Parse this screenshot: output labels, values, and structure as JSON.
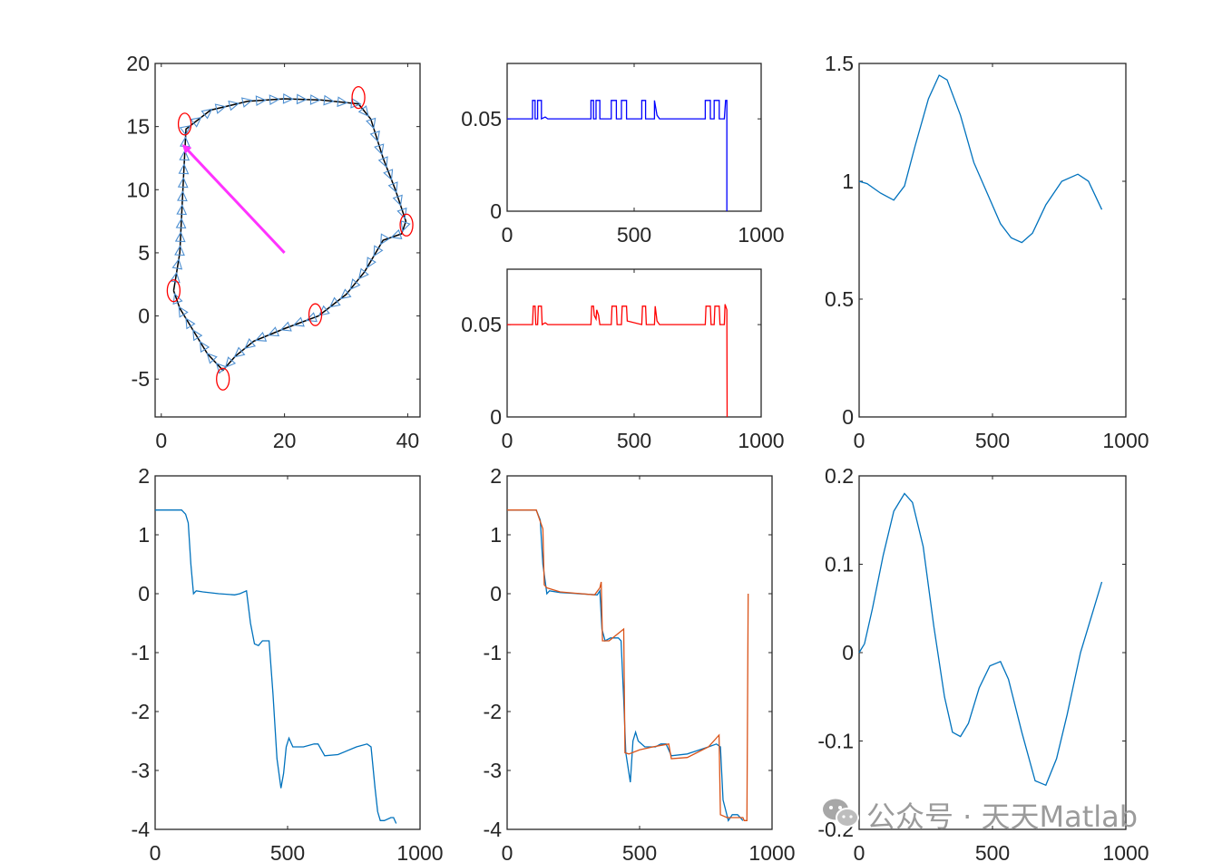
{
  "watermark": {
    "text": "公众号 · 天天Matlab"
  },
  "colors": {
    "blue": "#0072BD",
    "orange": "#D95319",
    "pureBlue": "#0000FF",
    "red": "#FF0000",
    "magenta": "#FF33FF",
    "axis": "#262626"
  },
  "chart_data": [
    {
      "id": "p1",
      "type": "line",
      "xlim": [
        -1,
        42
      ],
      "ylim": [
        -8,
        20
      ],
      "xticks": [
        0,
        20,
        40
      ],
      "yticks": [
        -5,
        0,
        5,
        10,
        15,
        20
      ],
      "path": [
        [
          2,
          2
        ],
        [
          3,
          5
        ],
        [
          3.5,
          10
        ],
        [
          4,
          14.8
        ],
        [
          8,
          16.3
        ],
        [
          14,
          17
        ],
        [
          20,
          17.2
        ],
        [
          26,
          17.1
        ],
        [
          32,
          16.8
        ],
        [
          34,
          15.6
        ],
        [
          36,
          12.5
        ],
        [
          38,
          10
        ],
        [
          39.7,
          7.5
        ],
        [
          39,
          6.5
        ],
        [
          36,
          6
        ],
        [
          33,
          3.5
        ],
        [
          30,
          1.7
        ],
        [
          25.5,
          0
        ],
        [
          20,
          -1
        ],
        [
          15,
          -2
        ],
        [
          12,
          -3.2
        ],
        [
          10,
          -4.3
        ],
        [
          7.5,
          -3
        ],
        [
          5,
          -1
        ],
        [
          3,
          0.6
        ],
        [
          2,
          2
        ]
      ],
      "circles": [
        [
          2,
          2
        ],
        [
          3.8,
          15.2
        ],
        [
          32,
          17.3
        ],
        [
          39.8,
          7.2
        ],
        [
          25,
          0.1
        ],
        [
          10,
          -5
        ]
      ],
      "arrow": {
        "from": [
          20,
          5
        ],
        "to": [
          3.6,
          13.5
        ]
      }
    },
    {
      "id": "p2",
      "type": "line",
      "color": "#0000FF",
      "xlim": [
        0,
        1000
      ],
      "ylim": [
        0,
        0.08
      ],
      "xticks": [
        0,
        500,
        1000
      ],
      "yticks": [
        0,
        0.05
      ],
      "points": [
        [
          0,
          0.05
        ],
        [
          100,
          0.05
        ],
        [
          100,
          0.06
        ],
        [
          110,
          0.06
        ],
        [
          110,
          0.05
        ],
        [
          120,
          0.05
        ],
        [
          120,
          0.06
        ],
        [
          135,
          0.06
        ],
        [
          135,
          0.05
        ],
        [
          150,
          0.051
        ],
        [
          160,
          0.05
        ],
        [
          330,
          0.05
        ],
        [
          330,
          0.06
        ],
        [
          340,
          0.06
        ],
        [
          340,
          0.05
        ],
        [
          350,
          0.05
        ],
        [
          350,
          0.06
        ],
        [
          365,
          0.06
        ],
        [
          365,
          0.05
        ],
        [
          410,
          0.05
        ],
        [
          410,
          0.06
        ],
        [
          430,
          0.06
        ],
        [
          430,
          0.05
        ],
        [
          450,
          0.05
        ],
        [
          450,
          0.06
        ],
        [
          470,
          0.06
        ],
        [
          470,
          0.05
        ],
        [
          530,
          0.05
        ],
        [
          530,
          0.06
        ],
        [
          545,
          0.06
        ],
        [
          545,
          0.05
        ],
        [
          580,
          0.05
        ],
        [
          580,
          0.06
        ],
        [
          590,
          0.052
        ],
        [
          600,
          0.05
        ],
        [
          780,
          0.05
        ],
        [
          780,
          0.06
        ],
        [
          800,
          0.06
        ],
        [
          800,
          0.05
        ],
        [
          815,
          0.05
        ],
        [
          815,
          0.06
        ],
        [
          835,
          0.06
        ],
        [
          835,
          0.05
        ],
        [
          855,
          0.05
        ],
        [
          860,
          0.06
        ],
        [
          865,
          0.06
        ],
        [
          865,
          0.0
        ]
      ]
    },
    {
      "id": "p3",
      "type": "line",
      "color": "#FF0000",
      "xlim": [
        0,
        1000
      ],
      "ylim": [
        0,
        0.08
      ],
      "xticks": [
        0,
        500,
        1000
      ],
      "yticks": [
        0,
        0.05
      ],
      "points": [
        [
          0,
          0.05
        ],
        [
          100,
          0.05
        ],
        [
          103,
          0.06
        ],
        [
          110,
          0.06
        ],
        [
          113,
          0.05
        ],
        [
          120,
          0.05
        ],
        [
          123,
          0.06
        ],
        [
          135,
          0.06
        ],
        [
          138,
          0.05
        ],
        [
          150,
          0.051
        ],
        [
          160,
          0.05
        ],
        [
          330,
          0.05
        ],
        [
          333,
          0.06
        ],
        [
          340,
          0.06
        ],
        [
          343,
          0.055
        ],
        [
          350,
          0.053
        ],
        [
          353,
          0.058
        ],
        [
          360,
          0.055
        ],
        [
          365,
          0.05
        ],
        [
          410,
          0.05
        ],
        [
          413,
          0.06
        ],
        [
          430,
          0.06
        ],
        [
          433,
          0.05
        ],
        [
          450,
          0.05
        ],
        [
          453,
          0.06
        ],
        [
          470,
          0.06
        ],
        [
          473,
          0.052
        ],
        [
          530,
          0.05
        ],
        [
          533,
          0.06
        ],
        [
          545,
          0.06
        ],
        [
          548,
          0.05
        ],
        [
          580,
          0.05
        ],
        [
          583,
          0.06
        ],
        [
          590,
          0.052
        ],
        [
          600,
          0.05
        ],
        [
          780,
          0.05
        ],
        [
          783,
          0.06
        ],
        [
          800,
          0.06
        ],
        [
          803,
          0.05
        ],
        [
          815,
          0.05
        ],
        [
          818,
          0.06
        ],
        [
          835,
          0.06
        ],
        [
          838,
          0.05
        ],
        [
          855,
          0.05
        ],
        [
          858,
          0.061
        ],
        [
          865,
          0.058
        ],
        [
          866,
          0.0
        ]
      ]
    },
    {
      "id": "p4",
      "type": "line",
      "color": "#0072BD",
      "xlim": [
        0,
        1000
      ],
      "ylim": [
        0,
        1.5
      ],
      "xticks": [
        0,
        500,
        1000
      ],
      "yticks": [
        0,
        0.5,
        1,
        1.5
      ],
      "points": [
        [
          0,
          1.0
        ],
        [
          30,
          0.99
        ],
        [
          80,
          0.95
        ],
        [
          130,
          0.92
        ],
        [
          170,
          0.98
        ],
        [
          210,
          1.15
        ],
        [
          260,
          1.35
        ],
        [
          300,
          1.45
        ],
        [
          330,
          1.43
        ],
        [
          380,
          1.28
        ],
        [
          430,
          1.08
        ],
        [
          480,
          0.95
        ],
        [
          530,
          0.82
        ],
        [
          570,
          0.76
        ],
        [
          610,
          0.74
        ],
        [
          650,
          0.78
        ],
        [
          700,
          0.9
        ],
        [
          760,
          1.0
        ],
        [
          820,
          1.03
        ],
        [
          860,
          1.0
        ],
        [
          910,
          0.88
        ]
      ]
    },
    {
      "id": "p5",
      "type": "line",
      "color": "#0072BD",
      "xlim": [
        0,
        1000
      ],
      "ylim": [
        -4,
        2
      ],
      "xticks": [
        0,
        500,
        1000
      ],
      "yticks": [
        -4,
        -3,
        -2,
        -1,
        0,
        1,
        2
      ],
      "points": [
        [
          0,
          1.42
        ],
        [
          100,
          1.42
        ],
        [
          115,
          1.35
        ],
        [
          125,
          1.2
        ],
        [
          135,
          0.5
        ],
        [
          145,
          0.0
        ],
        [
          155,
          0.05
        ],
        [
          180,
          0.03
        ],
        [
          240,
          0.0
        ],
        [
          300,
          -0.02
        ],
        [
          320,
          0.0
        ],
        [
          345,
          0.05
        ],
        [
          360,
          -0.5
        ],
        [
          375,
          -0.85
        ],
        [
          390,
          -0.88
        ],
        [
          405,
          -0.8
        ],
        [
          430,
          -0.8
        ],
        [
          445,
          -1.7
        ],
        [
          460,
          -2.8
        ],
        [
          475,
          -3.3
        ],
        [
          485,
          -3.05
        ],
        [
          495,
          -2.6
        ],
        [
          505,
          -2.45
        ],
        [
          520,
          -2.6
        ],
        [
          560,
          -2.6
        ],
        [
          600,
          -2.55
        ],
        [
          615,
          -2.55
        ],
        [
          640,
          -2.75
        ],
        [
          690,
          -2.73
        ],
        [
          760,
          -2.6
        ],
        [
          800,
          -2.55
        ],
        [
          815,
          -2.6
        ],
        [
          830,
          -3.3
        ],
        [
          840,
          -3.7
        ],
        [
          850,
          -3.85
        ],
        [
          865,
          -3.85
        ],
        [
          890,
          -3.8
        ],
        [
          900,
          -3.8
        ],
        [
          910,
          -3.9
        ]
      ]
    },
    {
      "id": "p6",
      "type": "line",
      "xlim": [
        0,
        1000
      ],
      "ylim": [
        -4,
        2
      ],
      "xticks": [
        0,
        500,
        1000
      ],
      "yticks": [
        -4,
        -3,
        -2,
        -1,
        0,
        1,
        2
      ],
      "series": [
        {
          "color": "#0072BD",
          "points": [
            [
              0,
              1.42
            ],
            [
              110,
              1.42
            ],
            [
              125,
              1.25
            ],
            [
              135,
              0.5
            ],
            [
              150,
              0.0
            ],
            [
              160,
              0.05
            ],
            [
              200,
              0.02
            ],
            [
              340,
              -0.02
            ],
            [
              350,
              0.05
            ],
            [
              358,
              -0.6
            ],
            [
              370,
              -0.8
            ],
            [
              390,
              -0.75
            ],
            [
              420,
              -0.75
            ],
            [
              430,
              -0.8
            ],
            [
              440,
              -1.8
            ],
            [
              448,
              -2.7
            ],
            [
              465,
              -3.2
            ],
            [
              475,
              -2.5
            ],
            [
              485,
              -2.35
            ],
            [
              495,
              -2.5
            ],
            [
              520,
              -2.6
            ],
            [
              560,
              -2.6
            ],
            [
              580,
              -2.55
            ],
            [
              600,
              -2.55
            ],
            [
              620,
              -2.75
            ],
            [
              680,
              -2.72
            ],
            [
              760,
              -2.6
            ],
            [
              790,
              -2.55
            ],
            [
              805,
              -2.6
            ],
            [
              815,
              -3.5
            ],
            [
              835,
              -3.85
            ],
            [
              850,
              -3.75
            ],
            [
              870,
              -3.75
            ],
            [
              880,
              -3.8
            ],
            [
              890,
              -3.85
            ]
          ]
        },
        {
          "color": "#D95319",
          "points": [
            [
              0,
              1.42
            ],
            [
              110,
              1.42
            ],
            [
              135,
              1.1
            ],
            [
              140,
              0.15
            ],
            [
              150,
              0.1
            ],
            [
              200,
              0.03
            ],
            [
              330,
              -0.02
            ],
            [
              350,
              0.1
            ],
            [
              355,
              0.2
            ],
            [
              360,
              -0.8
            ],
            [
              385,
              -0.8
            ],
            [
              440,
              -0.6
            ],
            [
              445,
              -2.7
            ],
            [
              460,
              -2.72
            ],
            [
              500,
              -2.65
            ],
            [
              550,
              -2.6
            ],
            [
              610,
              -2.55
            ],
            [
              620,
              -2.8
            ],
            [
              680,
              -2.78
            ],
            [
              760,
              -2.6
            ],
            [
              800,
              -2.4
            ],
            [
              805,
              -3.75
            ],
            [
              830,
              -3.8
            ],
            [
              890,
              -3.8
            ],
            [
              895,
              -3.85
            ],
            [
              905,
              -3.85
            ],
            [
              910,
              0.0
            ]
          ]
        }
      ]
    },
    {
      "id": "p7",
      "type": "line",
      "color": "#0072BD",
      "xlim": [
        0,
        1000
      ],
      "ylim": [
        -0.2,
        0.2
      ],
      "xticks": [
        0,
        500,
        1000
      ],
      "yticks": [
        -0.2,
        -0.1,
        0,
        0.1,
        0.2
      ],
      "points": [
        [
          0,
          0.0
        ],
        [
          20,
          0.01
        ],
        [
          50,
          0.05
        ],
        [
          90,
          0.11
        ],
        [
          130,
          0.16
        ],
        [
          170,
          0.18
        ],
        [
          200,
          0.17
        ],
        [
          240,
          0.12
        ],
        [
          280,
          0.03
        ],
        [
          320,
          -0.05
        ],
        [
          350,
          -0.09
        ],
        [
          380,
          -0.095
        ],
        [
          410,
          -0.08
        ],
        [
          450,
          -0.04
        ],
        [
          490,
          -0.015
        ],
        [
          530,
          -0.01
        ],
        [
          560,
          -0.03
        ],
        [
          610,
          -0.09
        ],
        [
          660,
          -0.145
        ],
        [
          700,
          -0.15
        ],
        [
          740,
          -0.12
        ],
        [
          780,
          -0.07
        ],
        [
          830,
          0.0
        ],
        [
          880,
          0.05
        ],
        [
          910,
          0.08
        ]
      ]
    }
  ]
}
